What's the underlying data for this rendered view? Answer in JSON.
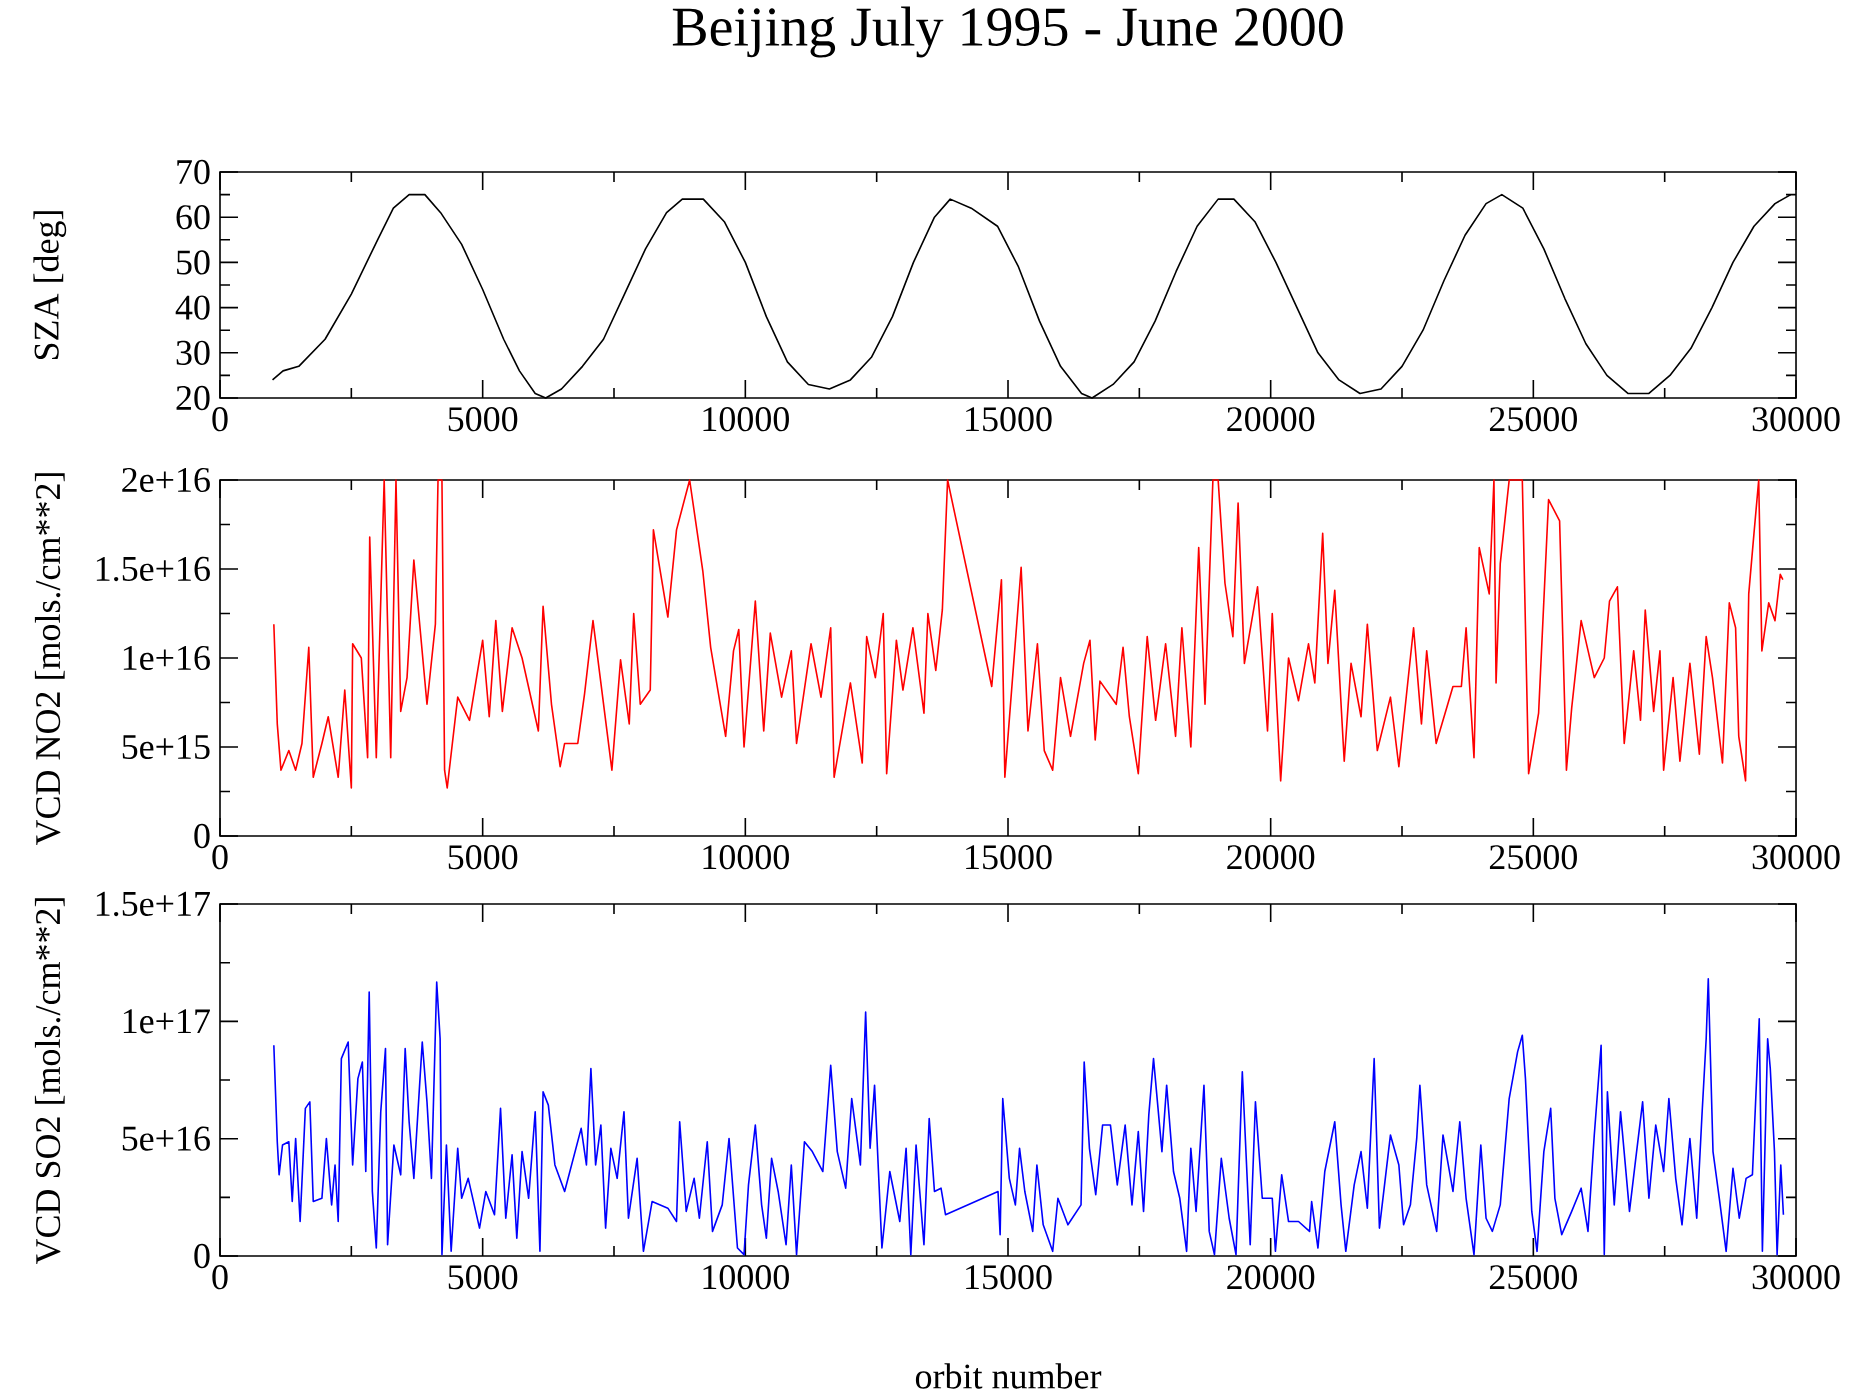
{
  "chart_data": [
    {
      "type": "line",
      "title": "Beijing July 1995 - June 2000",
      "ylabel": "SZA [deg]",
      "xlim": [
        0,
        30000
      ],
      "ylim": [
        20,
        70
      ],
      "xticks": [
        0,
        5000,
        10000,
        15000,
        20000,
        25000,
        30000
      ],
      "yticks": [
        20,
        30,
        40,
        50,
        60,
        70
      ],
      "x": [
        1000,
        1200,
        1500,
        2000,
        2500,
        3000,
        3300,
        3600,
        3900,
        4200,
        4600,
        5000,
        5400,
        5700,
        6000,
        6200,
        6500,
        6900,
        7300,
        7700,
        8100,
        8500,
        8800,
        9200,
        9600,
        10000,
        10400,
        10800,
        11200,
        11600,
        12000,
        12400,
        12800,
        13200,
        13600,
        13900,
        14300,
        14800,
        15200,
        15600,
        16000,
        16400,
        16600,
        17000,
        17400,
        17800,
        18200,
        18600,
        19000,
        19300,
        19700,
        20100,
        20500,
        20900,
        21300,
        21700,
        22100,
        22500,
        22900,
        23300,
        23700,
        24100,
        24400,
        24800,
        25200,
        25600,
        26000,
        26400,
        26800,
        27200,
        27600,
        28000,
        28400,
        28800,
        29200,
        29600,
        29900
      ],
      "series": [
        {
          "color": "#000000",
          "values": [
            24,
            26,
            27,
            33,
            43,
            55,
            62,
            65,
            65,
            61,
            54,
            44,
            33,
            26,
            21,
            20,
            22,
            27,
            33,
            43,
            53,
            61,
            64,
            64,
            59,
            50,
            38,
            28,
            23,
            22,
            24,
            29,
            38,
            50,
            60,
            64,
            62,
            58,
            49,
            37,
            27,
            21,
            20,
            23,
            28,
            37,
            48,
            58,
            64,
            64,
            59,
            50,
            40,
            30,
            24,
            21,
            22,
            27,
            35,
            46,
            56,
            63,
            65,
            62,
            53,
            42,
            32,
            25,
            21,
            21,
            25,
            31,
            40,
            50,
            58,
            63,
            65
          ]
        }
      ]
    },
    {
      "type": "line",
      "ylabel": "VCD NO2 [mols./cm**2]",
      "xlim": [
        0,
        30000
      ],
      "ylim": [
        0,
        2e+16
      ],
      "xticks": [
        0,
        5000,
        10000,
        15000,
        20000,
        25000,
        30000
      ],
      "yticks": [
        0,
        {
          "value": 5000000000000000.0,
          "label": "5e+15"
        },
        {
          "value": 1e+16,
          "label": "1e+16"
        },
        {
          "value": 1.5e+16,
          "label": "1.5e+16"
        },
        {
          "value": 2e+16,
          "label": "2e+16"
        }
      ],
      "x": [
        1025,
        1090,
        1160,
        1310,
        1440,
        1560,
        1690,
        1775,
        1940,
        2060,
        2250,
        2375,
        2500,
        2525,
        2690,
        2810,
        2850,
        2975,
        3125,
        3250,
        3350,
        3440,
        3560,
        3690,
        3940,
        4100,
        4150,
        4225,
        4275,
        4325,
        4525,
        4750,
        5000,
        5125,
        5250,
        5375,
        5560,
        5750,
        6060,
        6150,
        6310,
        6475,
        6560,
        6810,
        6940,
        7100,
        7250,
        7460,
        7625,
        7790,
        7875,
        8000,
        8190,
        8250,
        8525,
        8690,
        8940,
        9190,
        9340,
        9625,
        9775,
        9875,
        9975,
        10190,
        10350,
        10475,
        10690,
        10875,
        10975,
        11250,
        11440,
        11625,
        11690,
        12000,
        12225,
        12310,
        12475,
        12625,
        12690,
        12875,
        13000,
        13190,
        13400,
        13475,
        13625,
        13750,
        13850,
        14690,
        14875,
        14940,
        15250,
        15380,
        15560,
        15690,
        15850,
        16000,
        16190,
        16440,
        16560,
        16660,
        16750,
        17060,
        17190,
        17310,
        17480,
        17650,
        17810,
        18000,
        18190,
        18310,
        18480,
        18630,
        18750,
        18900,
        19000,
        19130,
        19280,
        19380,
        19500,
        19750,
        19940,
        20030,
        20190,
        20340,
        20530,
        20720,
        20840,
        20990,
        21090,
        21220,
        21400,
        21530,
        21720,
        21840,
        22030,
        22280,
        22440,
        22720,
        22870,
        22970,
        23150,
        23470,
        23630,
        23720,
        23870,
        23970,
        24160,
        24250,
        24290,
        24370,
        24540,
        24790,
        24910,
        25100,
        25290,
        25500,
        25630,
        25730,
        25910,
        26160,
        26350,
        26450,
        26600,
        26730,
        26910,
        27040,
        27130,
        27290,
        27410,
        27480,
        27660,
        27790,
        27980,
        28160,
        28290,
        28410,
        28600,
        28730,
        28850,
        28910,
        29040,
        29100,
        29200,
        29290,
        29350,
        29480,
        29600,
        29700,
        29750
      ],
      "series": [
        {
          "color": "#ff0000",
          "values": [
            1.19e+16,
            6300000000000000.0,
            3700000000000000.0,
            4800000000000000.0,
            3700000000000000.0,
            5200000000000000.0,
            1.06e+16,
            3300000000000000.0,
            5200000000000000.0,
            6700000000000000.0,
            3300000000000000.0,
            8200000000000000.0,
            2700000000000000.0,
            1.08e+16,
            1e+16,
            4400000000000000.0,
            1.68e+16,
            4400000000000000.0,
            2e+16,
            4400000000000000.0,
            2e+16,
            7000000000000000.0,
            8900000000000000.0,
            1.55e+16,
            7400000000000000.0,
            1.19e+16,
            2e+16,
            2e+16,
            3700000000000000.0,
            2700000000000000.0,
            7800000000000000.0,
            6500000000000000.0,
            1.1e+16,
            6700000000000000.0,
            1.21e+16,
            7000000000000000.0,
            1.17e+16,
            1e+16,
            5900000000000000.0,
            1.29e+16,
            7400000000000000.0,
            3900000000000000.0,
            5200000000000000.0,
            5200000000000000.0,
            8000000000000000.0,
            1.21e+16,
            8600000000000000.0,
            3700000000000000.0,
            9900000000000000.0,
            6300000000000000.0,
            1.25e+16,
            7400000000000000.0,
            8200000000000000.0,
            1.72e+16,
            1.23e+16,
            1.72e+16,
            2e+16,
            1.49e+16,
            1.06e+16,
            5600000000000000.0,
            1.04e+16,
            1.16e+16,
            5000000000000000.0,
            1.32e+16,
            5900000000000000.0,
            1.14e+16,
            7800000000000000.0,
            1.04e+16,
            5200000000000000.0,
            1.08e+16,
            7800000000000000.0,
            1.17e+16,
            3300000000000000.0,
            8600000000000000.0,
            4100000000000000.0,
            1.12e+16,
            8900000000000000.0,
            1.25e+16,
            3500000000000000.0,
            1.1e+16,
            8200000000000000.0,
            1.17e+16,
            6900000000000000.0,
            1.25e+16,
            9300000000000000.0,
            1.27e+16,
            2e+16,
            8400000000000000.0,
            1.44e+16,
            3300000000000000.0,
            1.51e+16,
            5900000000000000.0,
            1.08e+16,
            4800000000000000.0,
            3700000000000000.0,
            8900000000000000.0,
            5600000000000000.0,
            9700000000000000.0,
            1.1e+16,
            5400000000000000.0,
            8700000000000000.0,
            7400000000000000.0,
            1.06e+16,
            6700000000000000.0,
            3500000000000000.0,
            1.12e+16,
            6500000000000000.0,
            1.08e+16,
            5600000000000000.0,
            1.17e+16,
            5000000000000000.0,
            1.62e+16,
            7400000000000000.0,
            2e+16,
            2e+16,
            1.42e+16,
            1.12e+16,
            1.87e+16,
            9700000000000000.0,
            1.4e+16,
            5900000000000000.0,
            1.25e+16,
            3100000000000000.0,
            1e+16,
            7600000000000000.0,
            1.08e+16,
            8600000000000000.0,
            1.7e+16,
            9700000000000000.0,
            1.38e+16,
            4200000000000000.0,
            9700000000000000.0,
            6700000000000000.0,
            1.19e+16,
            4800000000000000.0,
            7800000000000000.0,
            3900000000000000.0,
            1.17e+16,
            6300000000000000.0,
            1.04e+16,
            5200000000000000.0,
            8400000000000000.0,
            8400000000000000.0,
            1.17e+16,
            4400000000000000.0,
            1.62e+16,
            1.36e+16,
            2e+16,
            8600000000000000.0,
            1.53e+16,
            2e+16,
            2e+16,
            3500000000000000.0,
            6900000000000000.0,
            1.89e+16,
            1.77e+16,
            3700000000000000.0,
            7200000000000000.0,
            1.21e+16,
            8900000000000000.0,
            1e+16,
            1.32e+16,
            1.4e+16,
            5200000000000000.0,
            1.04e+16,
            6500000000000000.0,
            1.27e+16,
            7000000000000000.0,
            1.04e+16,
            3700000000000000.0,
            8900000000000000.0,
            4200000000000000.0,
            9700000000000000.0,
            4600000000000000.0,
            1.12e+16,
            8900000000000000.0,
            4100000000000000.0,
            1.31e+16,
            1.17e+16,
            5600000000000000.0,
            3100000000000000.0,
            1.36e+16,
            1.7e+16,
            2e+16,
            1.04e+16,
            1.31e+16,
            1.21e+16,
            1.47e+16,
            1.44e+16
          ]
        }
      ]
    },
    {
      "type": "line",
      "xlabel": "orbit number",
      "ylabel": "VCD SO2 [mols./cm**2]",
      "xlim": [
        0,
        30000
      ],
      "ylim": [
        0,
        1.5e+17
      ],
      "xticks": [
        0,
        5000,
        10000,
        15000,
        20000,
        25000,
        30000
      ],
      "yticks": [
        0,
        {
          "value": 5e+16,
          "label": "5e+16"
        },
        {
          "value": 1e+17,
          "label": "1e+17"
        },
        {
          "value": 1.5e+17,
          "label": "1.5e+17"
        }
      ],
      "x": [
        1025,
        1090,
        1125,
        1190,
        1310,
        1375,
        1440,
        1525,
        1625,
        1710,
        1775,
        1940,
        2025,
        2125,
        2190,
        2250,
        2310,
        2440,
        2525,
        2625,
        2710,
        2775,
        2840,
        2900,
        2975,
        3060,
        3150,
        3190,
        3310,
        3440,
        3525,
        3600,
        3690,
        3850,
        3940,
        4025,
        4125,
        4190,
        4225,
        4310,
        4400,
        4525,
        4600,
        4725,
        4940,
        5060,
        5225,
        5340,
        5440,
        5560,
        5650,
        5750,
        5875,
        6000,
        6090,
        6150,
        6250,
        6375,
        6560,
        6875,
        6975,
        7060,
        7150,
        7250,
        7340,
        7440,
        7560,
        7690,
        7775,
        7940,
        8060,
        8225,
        8525,
        8690,
        8750,
        8875,
        9025,
        9125,
        9275,
        9375,
        9560,
        9690,
        9850,
        9975,
        10060,
        10190,
        10310,
        10400,
        10500,
        10625,
        10775,
        10875,
        10975,
        11125,
        11275,
        11475,
        11625,
        11750,
        11910,
        12025,
        12190,
        12290,
        12375,
        12460,
        12600,
        12750,
        12940,
        13060,
        13150,
        13250,
        13400,
        13500,
        13600,
        13725,
        13810,
        14810,
        14850,
        14900,
        15025,
        15140,
        15220,
        15320,
        15470,
        15550,
        15670,
        15850,
        15950,
        16140,
        16390,
        16450,
        16550,
        16670,
        16800,
        16950,
        17080,
        17230,
        17360,
        17480,
        17580,
        17680,
        17770,
        17930,
        18020,
        18150,
        18270,
        18400,
        18480,
        18580,
        18730,
        18830,
        18930,
        19060,
        19210,
        19340,
        19460,
        19610,
        19710,
        19840,
        20030,
        20090,
        20210,
        20340,
        20530,
        20740,
        20780,
        20900,
        21030,
        21220,
        21340,
        21430,
        21590,
        21720,
        21840,
        21970,
        22070,
        22280,
        22440,
        22530,
        22660,
        22780,
        22840,
        22970,
        23160,
        23280,
        23470,
        23600,
        23720,
        23870,
        24000,
        24100,
        24220,
        24370,
        24540,
        24700,
        24790,
        24850,
        24970,
        25070,
        25200,
        25330,
        25410,
        25540,
        25730,
        25910,
        26040,
        26160,
        26290,
        26350,
        26410,
        26540,
        26660,
        26830,
        26950,
        27080,
        27200,
        27330,
        27480,
        27580,
        27710,
        27830,
        27980,
        28110,
        28210,
        28290,
        28330,
        28420,
        28540,
        28670,
        28800,
        28920,
        29050,
        29170,
        29300,
        29360,
        29460,
        29510,
        29590,
        29640,
        29710,
        29760
      ],
      "series": [
        {
          "color": "#0000ff",
          "values": [
            8.98e+16,
            4.87e+16,
            3.46e+16,
            4.73e+16,
            4.87e+16,
            2.32e+16,
            5.01e+16,
            1.47e+16,
            6.29e+16,
            6.57e+16,
            2.32e+16,
            2.46e+16,
            5.01e+16,
            2.18e+16,
            3.88e+16,
            1.47e+16,
            8.41e+16,
            9.12e+16,
            3.88e+16,
            7.56e+16,
            8.27e+16,
            3.6e+16,
            1.125e+17,
            2.75e+16,
            3400000000000000.0,
            6.15e+16,
            8.84e+16,
            4800000000000000.0,
            4.73e+16,
            3.46e+16,
            8.84e+16,
            5.72e+16,
            3.31e+16,
            9.12e+16,
            6.57e+16,
            3.31e+16,
            1.167e+17,
            9.26e+16,
            600000000000000.0,
            4.73e+16,
            2000000000000000.0,
            4.59e+16,
            2.46e+16,
            3.31e+16,
            1.19e+16,
            2.75e+16,
            1.76e+16,
            6.29e+16,
            1.61e+16,
            4.31e+16,
            7600000000000000.0,
            4.45e+16,
            2.46e+16,
            6.15e+16,
            2000000000000000.0,
            7e+16,
            6.43e+16,
            3.88e+16,
            2.75e+16,
            5.44e+16,
            3.88e+16,
            7.99e+16,
            3.88e+16,
            5.58e+16,
            1.19e+16,
            4.59e+16,
            3.31e+16,
            6.15e+16,
            1.61e+16,
            4.16e+16,
            2000000000000000.0,
            2.32e+16,
            2.04e+16,
            1.47e+16,
            5.72e+16,
            1.9e+16,
            3.31e+16,
            1.61e+16,
            4.87e+16,
            1.05e+16,
            2.18e+16,
            5.01e+16,
            3400000000000000.0,
            600000000000000.0,
            3.03e+16,
            5.58e+16,
            2.18e+16,
            7600000000000000.0,
            4.16e+16,
            2.75e+16,
            4800000000000000.0,
            3.88e+16,
            600000000000000.0,
            4.87e+16,
            4.45e+16,
            3.6e+16,
            8.13e+16,
            4.45e+16,
            2.89e+16,
            6.71e+16,
            3.88e+16,
            1.04e+17,
            4.59e+16,
            7.28e+16,
            3400000000000000.0,
            3.6e+16,
            1.47e+16,
            4.59e+16,
            600000000000000.0,
            4.73e+16,
            4800000000000000.0,
            5.86e+16,
            2.75e+16,
            2.89e+16,
            1.76e+16,
            2.75e+16,
            9100000000000000.0,
            6.71e+16,
            3.31e+16,
            2.18e+16,
            4.59e+16,
            2.75e+16,
            1.05e+16,
            3.88e+16,
            1.33e+16,
            2000000000000000.0,
            2.46e+16,
            1.33e+16,
            2.18e+16,
            8.27e+16,
            4.59e+16,
            2.61e+16,
            5.58e+16,
            5.58e+16,
            3.03e+16,
            5.58e+16,
            2.18e+16,
            5.3e+16,
            1.9e+16,
            6.01e+16,
            8.41e+16,
            4.45e+16,
            7.28e+16,
            3.6e+16,
            2.46e+16,
            2000000000000000.0,
            4.59e+16,
            1.9e+16,
            7.28e+16,
            1.05e+16,
            600000000000000.0,
            4.16e+16,
            1.61e+16,
            600000000000000.0,
            7.85e+16,
            4800000000000000.0,
            6.57e+16,
            2.46e+16,
            2.46e+16,
            2000000000000000.0,
            3.46e+16,
            1.47e+16,
            1.47e+16,
            1.05e+16,
            2.32e+16,
            3400000000000000.0,
            3.6e+16,
            5.72e+16,
            2.18e+16,
            2000000000000000.0,
            3.03e+16,
            4.45e+16,
            2.04e+16,
            8.41e+16,
            1.19e+16,
            5.16e+16,
            3.88e+16,
            1.33e+16,
            2.18e+16,
            5.01e+16,
            7.28e+16,
            3.03e+16,
            1.05e+16,
            5.16e+16,
            2.75e+16,
            5.72e+16,
            2.46e+16,
            600000000000000.0,
            4.73e+16,
            1.61e+16,
            1.05e+16,
            2.18e+16,
            6.71e+16,
            8.7e+16,
            9.41e+16,
            7.56e+16,
            1.9e+16,
            2000000000000000.0,
            4.45e+16,
            6.29e+16,
            2.46e+16,
            9100000000000000.0,
            1.9e+16,
            2.89e+16,
            1.05e+16,
            5.16e+16,
            8.98e+16,
            600000000000000.0,
            7e+16,
            2.18e+16,
            6.15e+16,
            1.9e+16,
            4.16e+16,
            6.57e+16,
            2.46e+16,
            5.58e+16,
            3.6e+16,
            6.71e+16,
            3.31e+16,
            1.33e+16,
            5.01e+16,
            1.61e+16,
            6.01e+16,
            9.26e+16,
            1.181e+17,
            4.45e+16,
            2.46e+16,
            2000000000000000.0,
            3.74e+16,
            1.61e+16,
            3.31e+16,
            3.46e+16,
            1.011e+17,
            2000000000000000.0,
            9.26e+16,
            7.99e+16,
            4.45e+16,
            600000000000000.0,
            3.88e+16,
            1.76e+16
          ]
        }
      ]
    }
  ]
}
